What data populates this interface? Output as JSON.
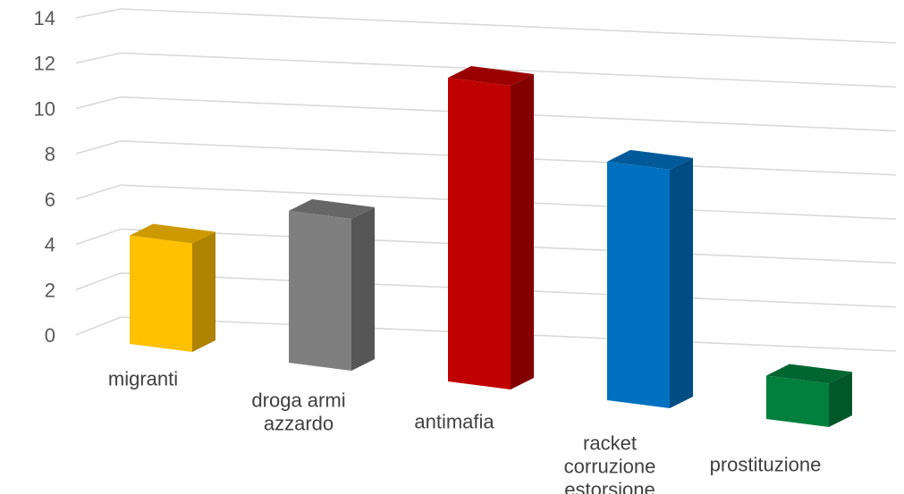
{
  "chart_data": {
    "type": "bar",
    "categories": [
      [
        "migranti"
      ],
      [
        "droga armi",
        "azzardo"
      ],
      [
        "antimafia"
      ],
      [
        "racket",
        "corruzione",
        "estorsione"
      ],
      [
        "prostituzione"
      ]
    ],
    "values": [
      5,
      7,
      14,
      11,
      2
    ],
    "colors": [
      "#ffc000",
      "#7f7f7f",
      "#c00000",
      "#0070c0",
      "#00803c"
    ],
    "ylim": [
      0,
      14
    ],
    "yticks": [
      "0",
      "2",
      "4",
      "6",
      "8",
      "10",
      "12",
      "14"
    ],
    "grid": true,
    "legend": "none",
    "style": "3d-perspective"
  }
}
